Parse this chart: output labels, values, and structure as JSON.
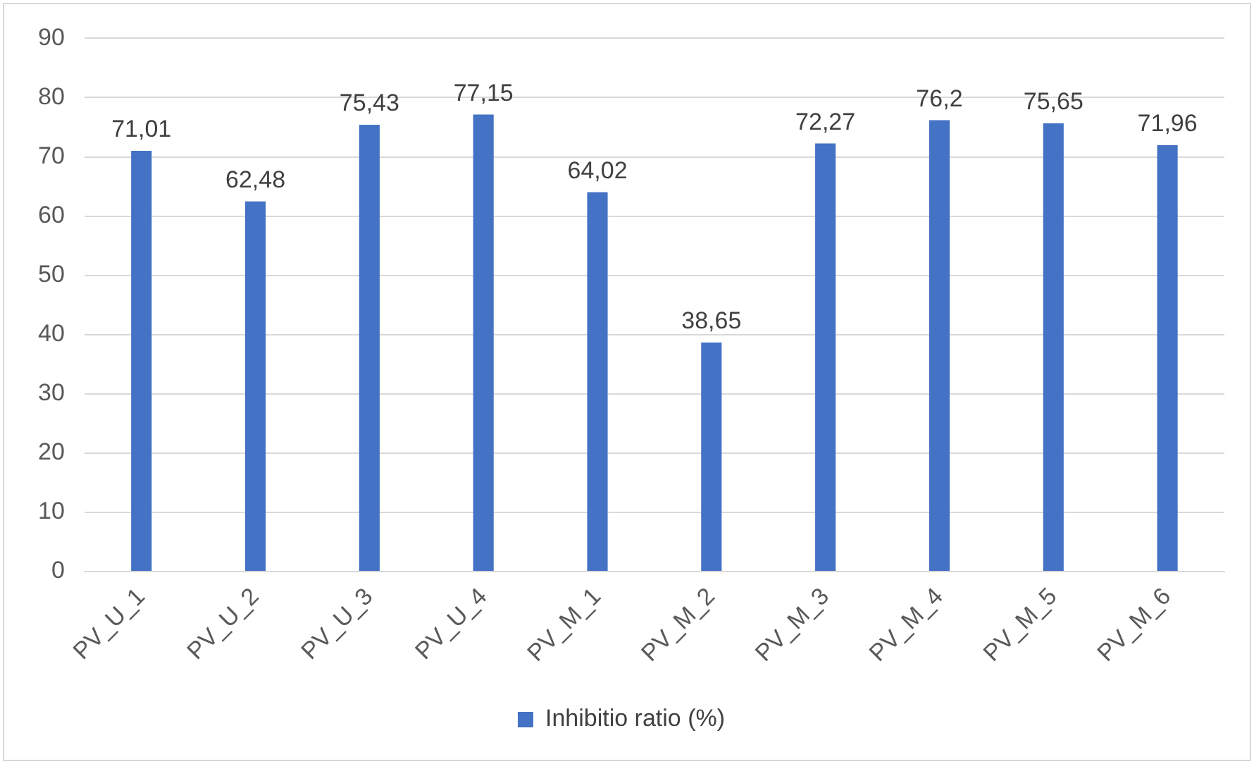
{
  "chart_data": {
    "type": "bar",
    "categories": [
      "PV_U_1",
      "PV_U_2",
      "PV_U_3",
      "PV_U_4",
      "PV_M_1",
      "PV_M_2",
      "PV_M_3",
      "PV_M_4",
      "PV_M_5",
      "PV_M_6"
    ],
    "series": [
      {
        "name": "Inhibitio ratio (%)",
        "color": "#4472c4",
        "values": [
          71.01,
          62.48,
          75.43,
          77.15,
          64.02,
          38.65,
          72.27,
          76.2,
          75.65,
          71.96
        ],
        "value_labels": [
          "71,01",
          "62,48",
          "75,43",
          "77,15",
          "64,02",
          "38,65",
          "72,27",
          "76,2",
          "75,65",
          "71,96"
        ]
      }
    ],
    "ylim": [
      0,
      90
    ],
    "yticks": [
      0,
      10,
      20,
      30,
      40,
      50,
      60,
      70,
      80,
      90
    ],
    "grid": "y",
    "legend": "bottom"
  }
}
